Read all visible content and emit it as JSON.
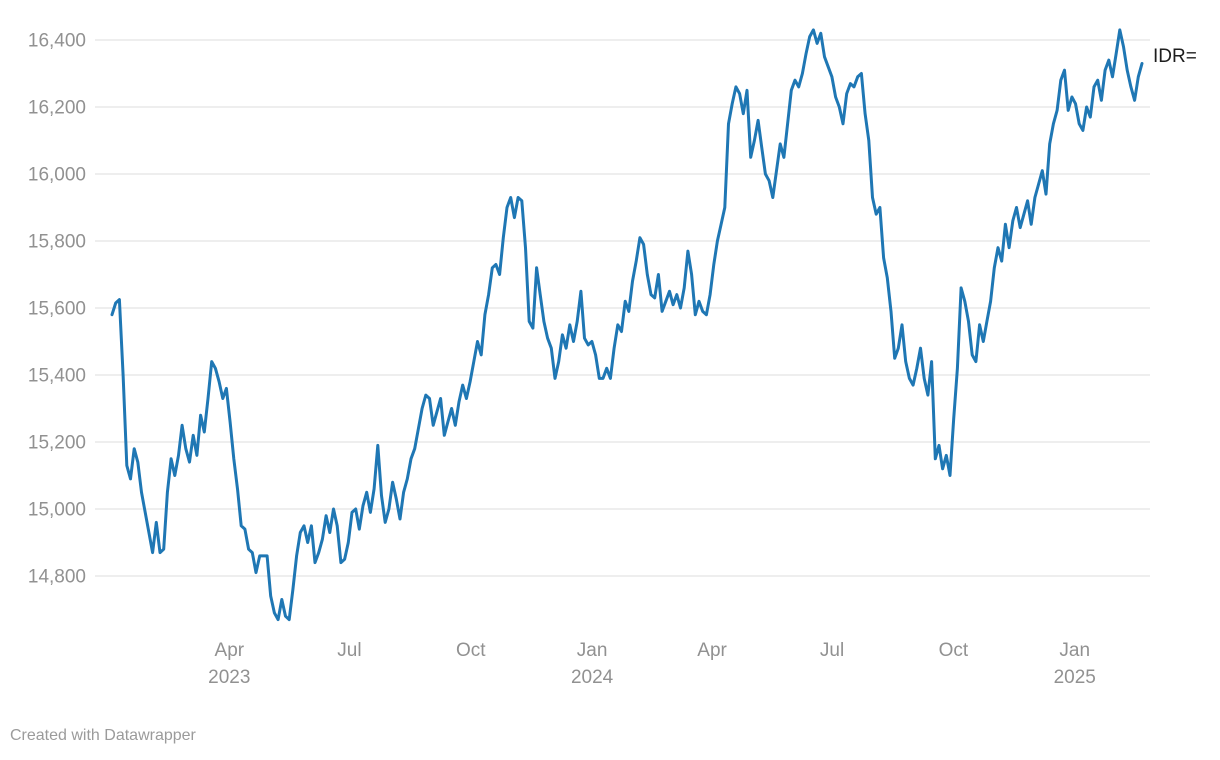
{
  "chart_data": {
    "type": "line",
    "series_label": "IDR=",
    "x_start": "2023-01-02",
    "x_end": "2025-02-21",
    "line_color": "#1f77b4",
    "grid_color": "#dddddd",
    "tick_color": "#919191",
    "legend_position": "end-of-line",
    "grid": "horizontal-only",
    "ylim": [
      14650,
      16450
    ],
    "y_ticks": [
      {
        "value": 16400,
        "label": "16,400"
      },
      {
        "value": 16200,
        "label": "16,200"
      },
      {
        "value": 16000,
        "label": "16,000"
      },
      {
        "value": 15800,
        "label": "15,800"
      },
      {
        "value": 15600,
        "label": "15,600"
      },
      {
        "value": 15400,
        "label": "15,400"
      },
      {
        "value": 15200,
        "label": "15,200"
      },
      {
        "value": 15000,
        "label": "15,000"
      },
      {
        "value": 14800,
        "label": "14,800"
      }
    ],
    "x_ticks": [
      {
        "label": "Apr",
        "year": "2023",
        "t": 0.1139
      },
      {
        "label": "Jul",
        "t": 0.2305
      },
      {
        "label": "Oct",
        "t": 0.3483
      },
      {
        "label": "Jan",
        "year": "2024",
        "t": 0.4661
      },
      {
        "label": "Apr",
        "t": 0.5826
      },
      {
        "label": "Jul",
        "t": 0.6991
      },
      {
        "label": "Oct",
        "t": 0.8169
      },
      {
        "label": "Jan",
        "year": "2025",
        "t": 0.9347
      }
    ],
    "values": [
      15580,
      15615,
      15625,
      15400,
      15130,
      15090,
      15180,
      15140,
      15050,
      14990,
      14930,
      14870,
      14960,
      14870,
      14880,
      15050,
      15150,
      15100,
      15160,
      15250,
      15180,
      15140,
      15220,
      15160,
      15280,
      15230,
      15330,
      15440,
      15420,
      15380,
      15330,
      15360,
      15260,
      15150,
      15060,
      14950,
      14940,
      14880,
      14870,
      14810,
      14860,
      14860,
      14860,
      14740,
      14690,
      14670,
      14730,
      14680,
      14670,
      14760,
      14860,
      14930,
      14950,
      14900,
      14950,
      14840,
      14870,
      14910,
      14980,
      14930,
      15000,
      14950,
      14840,
      14850,
      14900,
      14990,
      15000,
      14940,
      15010,
      15050,
      14990,
      15060,
      15190,
      15040,
      14960,
      15000,
      15080,
      15030,
      14970,
      15050,
      15090,
      15150,
      15180,
      15240,
      15300,
      15340,
      15330,
      15250,
      15290,
      15330,
      15220,
      15260,
      15300,
      15250,
      15320,
      15370,
      15330,
      15380,
      15440,
      15500,
      15460,
      15580,
      15640,
      15720,
      15730,
      15700,
      15810,
      15900,
      15930,
      15870,
      15930,
      15920,
      15780,
      15560,
      15540,
      15720,
      15640,
      15560,
      15510,
      15480,
      15390,
      15440,
      15520,
      15480,
      15550,
      15500,
      15560,
      15650,
      15510,
      15490,
      15500,
      15460,
      15390,
      15390,
      15420,
      15390,
      15480,
      15550,
      15530,
      15620,
      15590,
      15680,
      15740,
      15810,
      15790,
      15700,
      15640,
      15630,
      15700,
      15590,
      15620,
      15650,
      15610,
      15640,
      15600,
      15660,
      15770,
      15700,
      15580,
      15620,
      15590,
      15580,
      15640,
      15730,
      15800,
      15850,
      15900,
      16150,
      16210,
      16260,
      16240,
      16180,
      16250,
      16050,
      16100,
      16160,
      16080,
      16000,
      15980,
      15930,
      16010,
      16090,
      16050,
      16150,
      16250,
      16280,
      16260,
      16300,
      16360,
      16410,
      16430,
      16390,
      16420,
      16350,
      16320,
      16290,
      16230,
      16200,
      16150,
      16240,
      16270,
      16260,
      16290,
      16300,
      16180,
      16100,
      15930,
      15880,
      15900,
      15750,
      15690,
      15590,
      15450,
      15480,
      15550,
      15440,
      15390,
      15370,
      15420,
      15480,
      15390,
      15340,
      15440,
      15150,
      15190,
      15120,
      15160,
      15100,
      15270,
      15420,
      15660,
      15620,
      15560,
      15460,
      15440,
      15550,
      15500,
      15560,
      15620,
      15720,
      15780,
      15740,
      15850,
      15780,
      15860,
      15900,
      15840,
      15880,
      15920,
      15850,
      15930,
      15970,
      16010,
      15940,
      16090,
      16150,
      16190,
      16280,
      16310,
      16190,
      16230,
      16210,
      16150,
      16130,
      16200,
      16170,
      16260,
      16280,
      16220,
      16310,
      16340,
      16290,
      16360,
      16430,
      16380,
      16310,
      16260,
      16220,
      16290,
      16330
    ]
  },
  "footer": {
    "credit": "Created with Datawrapper"
  }
}
